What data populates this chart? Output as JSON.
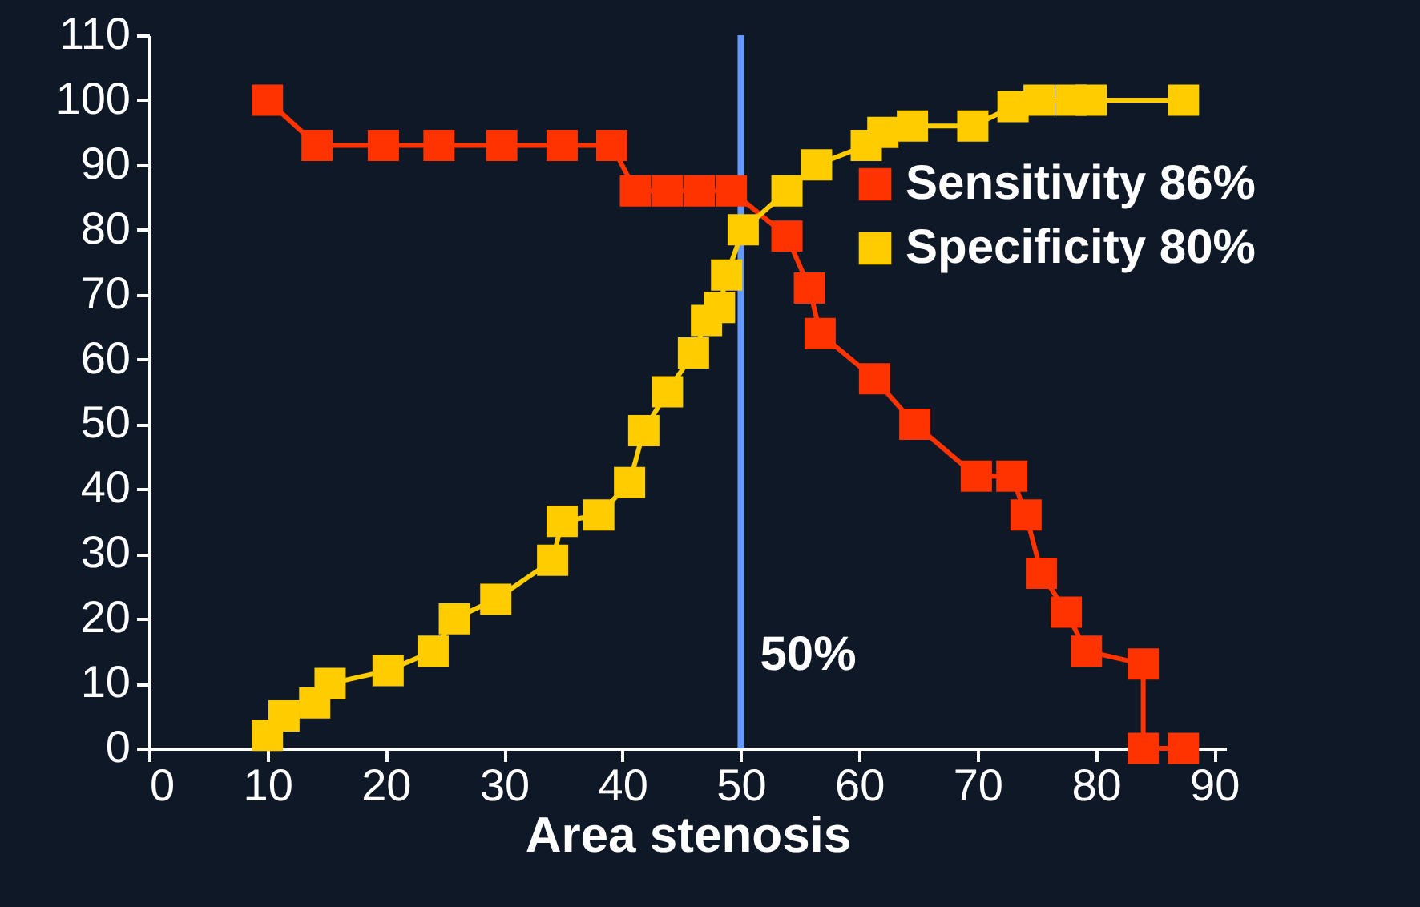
{
  "chart_data": {
    "type": "line",
    "xlabel": "Area stenosis",
    "xlim": [
      0,
      91
    ],
    "xticks": [
      0,
      10,
      20,
      30,
      40,
      50,
      60,
      70,
      80,
      90
    ],
    "ylim": [
      0,
      110
    ],
    "yticks": [
      0,
      10,
      20,
      30,
      40,
      50,
      60,
      70,
      80,
      90,
      100,
      110
    ],
    "grid": false,
    "legend": "right",
    "marker": "square",
    "line_style": "solid",
    "ref_lines": [
      {
        "axis": "x",
        "value": 50,
        "label": "50%",
        "color": "#6699ff"
      }
    ],
    "series": [
      {
        "name": "Sensitivity 86%",
        "color": "#ff3300",
        "x": [
          10,
          14.2,
          19.8,
          24.5,
          29.8,
          34.9,
          39.1,
          41.1,
          43.8,
          46.5,
          49.2,
          53.9,
          55.8,
          56.7,
          61.3,
          64.7,
          69.9,
          72.9,
          74.1,
          75.4,
          77.5,
          79.2,
          84,
          84,
          87.4
        ],
        "values": [
          100,
          93,
          93,
          93,
          93,
          93,
          93,
          86,
          86,
          86,
          86,
          79,
          71,
          64,
          57,
          50,
          42,
          42,
          36,
          27,
          21,
          15,
          13,
          0,
          0
        ]
      },
      {
        "name": "Specificity 80%",
        "color": "#ffcc00",
        "x": [
          10,
          11.4,
          14,
          15.3,
          20.2,
          24,
          25.8,
          29.3,
          34.1,
          34.9,
          38,
          40.6,
          41.8,
          43.8,
          46,
          47.1,
          48.2,
          48.8,
          50.2,
          53.9,
          56.4,
          60.6,
          62,
          64.5,
          69.6,
          73,
          75.2,
          77.9,
          79.6,
          87.4
        ],
        "values": [
          2,
          5,
          7,
          10,
          12,
          15,
          20,
          23,
          29,
          35,
          36,
          41,
          49,
          55,
          61,
          66,
          68,
          73,
          80,
          86,
          90,
          93,
          95,
          96,
          96,
          99,
          100,
          100,
          100,
          100
        ]
      }
    ]
  }
}
